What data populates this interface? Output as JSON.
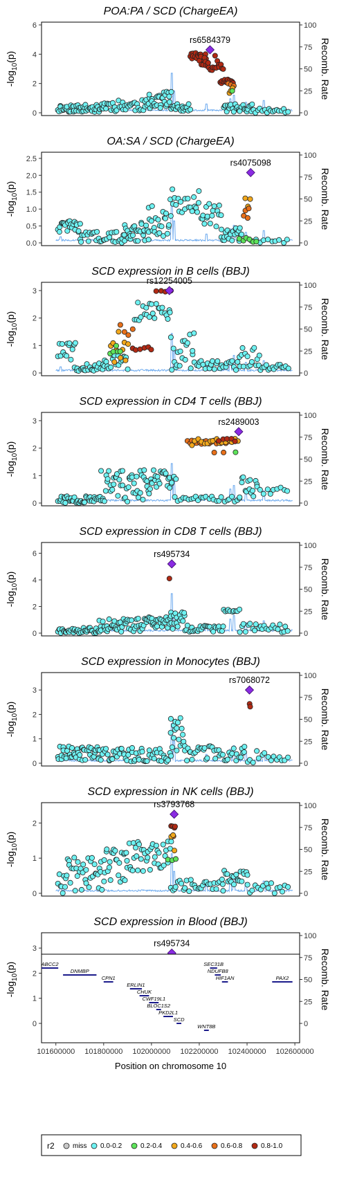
{
  "chart_data": {
    "type": "scatter",
    "xlabel": "Position on chromosome 10",
    "x_ticks": [
      101600000,
      101800000,
      102000000,
      102200000,
      102400000,
      102600000
    ],
    "x_tick_labels": [
      "101600000",
      "101800000",
      "102000000",
      "102200000",
      "102400000",
      "102600000"
    ],
    "ylabel_left": "-log10(p)",
    "ylabel_right": "Recomb. Rate",
    "recomb_ticks": [
      0,
      25,
      50,
      75,
      100
    ],
    "legend": {
      "title": "r2",
      "entries": [
        {
          "label": "miss",
          "color": "#c8c8c8"
        },
        {
          "label": "0.0-0.2",
          "color": "#6ef2f2"
        },
        {
          "label": "0.2-0.4",
          "color": "#5de35a"
        },
        {
          "label": "0.4-0.6",
          "color": "#f2a81c"
        },
        {
          "label": "0.6-0.8",
          "color": "#e8701a"
        },
        {
          "label": "0.8-1.0",
          "color": "#b22a14"
        }
      ]
    },
    "panels": [
      {
        "title": "POA:PA / SCD (ChargeEA)",
        "ylim": [
          0,
          6
        ],
        "yticks": [
          0,
          2,
          4,
          6
        ],
        "lead_snp": "rs6584379",
        "lead_pos": 102245000,
        "lead_y": 4.3,
        "seed": 11,
        "clusters": [
          {
            "r2": "0.0-0.2",
            "segs": [
              [
                101610000,
                101790000,
                0.05,
                0.55,
                48
              ],
              [
                101790000,
                101990000,
                0.1,
                0.9,
                40
              ],
              [
                101990000,
                102080000,
                0.3,
                1.5,
                28
              ],
              [
                102080000,
                102160000,
                0.1,
                0.6,
                20
              ],
              [
                102300000,
                102420000,
                0.05,
                0.6,
                26
              ],
              [
                102420000,
                102570000,
                0.0,
                0.3,
                18
              ]
            ]
          },
          {
            "r2": "0.8-1.0",
            "segs": [
              [
                102160000,
                102230000,
                3.55,
                4.1,
                18
              ],
              [
                102200000,
                102300000,
                2.9,
                3.9,
                22
              ],
              [
                102290000,
                102340000,
                2.0,
                2.3,
                14
              ]
            ]
          },
          {
            "r2": "0.6-0.8",
            "segs": [
              [
                102320000,
                102345000,
                1.5,
                2.2,
                3
              ]
            ]
          },
          {
            "r2": "0.4-0.6",
            "segs": [
              [
                102325000,
                102340000,
                1.2,
                1.7,
                3
              ]
            ]
          },
          {
            "r2": "0.2-0.4",
            "segs": [
              [
                102330000,
                102345000,
                1.4,
                1.6,
                1
              ]
            ]
          }
        ]
      },
      {
        "title": "OA:SA / SCD (ChargeEA)",
        "ylim": [
          0,
          2.6
        ],
        "yticks": [
          0,
          0.5,
          1.0,
          1.5,
          2.0,
          2.5
        ],
        "ytick_labels": [
          "0.0",
          "0.5",
          "1.0",
          "1.5",
          "2.0",
          "2.5"
        ],
        "lead_snp": "rs4075098",
        "lead_pos": 102415000,
        "lead_y": 2.08,
        "seed": 22,
        "clusters": [
          {
            "r2": "0.0-0.2",
            "segs": [
              [
                101610000,
                101700000,
                0.3,
                0.65,
                24
              ],
              [
                101700000,
                101880000,
                0.0,
                0.35,
                30
              ],
              [
                101880000,
                101990000,
                0.05,
                0.6,
                30
              ],
              [
                101990000,
                102080000,
                0.2,
                1.1,
                22
              ],
              [
                102080000,
                102200000,
                0.9,
                1.6,
                20
              ],
              [
                102200000,
                102290000,
                0.45,
                1.2,
                18
              ],
              [
                102290000,
                102380000,
                0.05,
                0.45,
                22
              ],
              [
                102420000,
                102570000,
                0.0,
                0.1,
                10
              ]
            ]
          },
          {
            "r2": "0.4-0.6",
            "segs": [
              [
                102395000,
                102415000,
                1.0,
                1.4,
                3
              ]
            ]
          },
          {
            "r2": "0.6-0.8",
            "segs": [
              [
                102385000,
                102410000,
                0.65,
                1.05,
                4
              ]
            ]
          },
          {
            "r2": "0.2-0.4",
            "segs": [
              [
                102370000,
                102440000,
                0.02,
                0.15,
                6
              ]
            ]
          }
        ]
      },
      {
        "title": "SCD expression in B cells (BBJ)",
        "ylim": [
          0,
          3.2
        ],
        "yticks": [
          0,
          1,
          2,
          3
        ],
        "lead_snp": "rs12254005",
        "lead_pos": 102075000,
        "lead_y": 3.0,
        "seed": 33,
        "clusters": [
          {
            "r2": "0.0-0.2",
            "segs": [
              [
                101610000,
                101680000,
                0.4,
                1.15,
                14
              ],
              [
                101680000,
                101800000,
                0.05,
                0.35,
                22
              ],
              [
                101800000,
                101900000,
                0.1,
                0.7,
                18
              ],
              [
                101930000,
                102080000,
                1.9,
                2.6,
                24
              ],
              [
                102080000,
                102180000,
                0.1,
                1.5,
                20
              ],
              [
                102180000,
                102370000,
                0.1,
                0.45,
                26
              ],
              [
                102370000,
                102450000,
                0.2,
                1.0,
                14
              ],
              [
                102450000,
                102570000,
                0.1,
                0.3,
                16
              ]
            ]
          },
          {
            "r2": "0.8-1.0",
            "segs": [
              [
                102020000,
                102080000,
                2.95,
                3.0,
                4
              ],
              [
                101920000,
                102000000,
                0.8,
                1.0,
                6
              ]
            ]
          },
          {
            "r2": "0.6-0.8",
            "segs": [
              [
                101870000,
                101920000,
                1.3,
                1.8,
                4
              ]
            ]
          },
          {
            "r2": "0.4-0.6",
            "segs": [
              [
                101830000,
                101900000,
                0.2,
                1.9,
                10
              ]
            ]
          },
          {
            "r2": "0.2-0.4",
            "segs": [
              [
                101830000,
                101870000,
                0.5,
                1.0,
                5
              ]
            ]
          }
        ]
      },
      {
        "title": "SCD expression in CD4 T cells (BBJ)",
        "ylim": [
          0,
          3.2
        ],
        "yticks": [
          0,
          1,
          2,
          3
        ],
        "lead_snp": "rs2489003",
        "lead_pos": 102365000,
        "lead_y": 2.6,
        "seed": 44,
        "clusters": [
          {
            "r2": "0.0-0.2",
            "segs": [
              [
                101610000,
                101790000,
                0.0,
                0.25,
                40
              ],
              [
                101790000,
                102000000,
                0.05,
                1.2,
                52
              ],
              [
                102000000,
                102100000,
                0.5,
                1.2,
                24
              ],
              [
                102100000,
                102370000,
                0.05,
                0.25,
                26
              ],
              [
                102370000,
                102440000,
                0.2,
                1.1,
                14
              ],
              [
                102440000,
                102570000,
                0.3,
                0.8,
                10
              ]
            ]
          },
          {
            "r2": "0.6-0.8",
            "segs": [
              [
                102150000,
                102320000,
                2.15,
                2.3,
                18
              ],
              [
                102260000,
                102300000,
                1.75,
                1.85,
                2
              ]
            ]
          },
          {
            "r2": "0.4-0.6",
            "segs": [
              [
                102170000,
                102360000,
                2.1,
                2.35,
                16
              ]
            ]
          },
          {
            "r2": "0.8-1.0",
            "segs": [
              [
                102280000,
                102350000,
                2.2,
                2.35,
                5
              ]
            ]
          },
          {
            "r2": "0.2-0.4",
            "segs": [
              [
                102345000,
                102365000,
                1.85,
                1.85,
                1
              ]
            ]
          }
        ]
      },
      {
        "title": "SCD expression in CD8 T cells (BBJ)",
        "ylim": [
          0,
          6.6
        ],
        "yticks": [
          0,
          2,
          4,
          6
        ],
        "lead_snp": "rs495734",
        "lead_pos": 102085000,
        "lead_y": 5.2,
        "seed": 55,
        "clusters": [
          {
            "r2": "0.0-0.2",
            "segs": [
              [
                101610000,
                101780000,
                0.0,
                0.4,
                40
              ],
              [
                101780000,
                101980000,
                0.1,
                1.1,
                50
              ],
              [
                101980000,
                102080000,
                0.4,
                1.2,
                30
              ],
              [
                102080000,
                102140000,
                0.2,
                1.6,
                16
              ],
              [
                102140000,
                102300000,
                0.1,
                0.6,
                28
              ],
              [
                102300000,
                102370000,
                1.6,
                1.8,
                10
              ],
              [
                102370000,
                102570000,
                0.0,
                0.8,
                24
              ]
            ]
          },
          {
            "r2": "0.8-1.0",
            "segs": [
              [
                102075000,
                102080000,
                4.1,
                4.1,
                1
              ]
            ]
          }
        ]
      },
      {
        "title": "SCD expression in Monocytes (BBJ)",
        "ylim": [
          0,
          3.6
        ],
        "yticks": [
          0,
          1,
          2,
          3
        ],
        "lead_snp": "rs7068072",
        "lead_pos": 102410000,
        "lead_y": 3.0,
        "seed": 66,
        "clusters": [
          {
            "r2": "0.0-0.2",
            "segs": [
              [
                101610000,
                101780000,
                0.1,
                0.7,
                44
              ],
              [
                101780000,
                102080000,
                0.05,
                0.65,
                60
              ],
              [
                102080000,
                102140000,
                0.5,
                1.95,
                18
              ],
              [
                102140000,
                102390000,
                0.1,
                0.7,
                40
              ],
              [
                102390000,
                102570000,
                0.0,
                0.55,
                16
              ]
            ]
          },
          {
            "r2": "0.8-1.0",
            "segs": [
              [
                102410000,
                102415000,
                2.3,
                2.6,
                2
              ]
            ]
          }
        ]
      },
      {
        "title": "SCD expression in NK cells (BBJ)",
        "ylim": [
          0,
          2.5
        ],
        "yticks": [
          0,
          1,
          2
        ],
        "lead_snp": "rs3793768",
        "lead_pos": 102095000,
        "lead_y": 2.25,
        "seed": 77,
        "clusters": [
          {
            "r2": "0.0-0.2",
            "segs": [
              [
                101610000,
                101800000,
                0.0,
                1.05,
                44
              ],
              [
                101800000,
                101900000,
                0.3,
                1.3,
                24
              ],
              [
                101900000,
                102080000,
                0.6,
                1.5,
                40
              ],
              [
                102080000,
                102300000,
                0.05,
                0.4,
                30
              ],
              [
                102300000,
                102400000,
                0.25,
                0.65,
                20
              ],
              [
                102400000,
                102570000,
                0.0,
                0.3,
                16
              ]
            ]
          },
          {
            "r2": "0.8-1.0",
            "segs": [
              [
                102085000,
                102100000,
                1.75,
                1.95,
                4
              ]
            ]
          },
          {
            "r2": "0.6-0.8",
            "segs": [
              [
                102085000,
                102095000,
                1.6,
                1.7,
                2
              ]
            ]
          },
          {
            "r2": "0.4-0.6",
            "segs": [
              [
                102080000,
                102095000,
                1.15,
                1.7,
                3
              ]
            ]
          },
          {
            "r2": "0.2-0.4",
            "segs": [
              [
                102070000,
                102100000,
                0.9,
                1.15,
                3
              ]
            ]
          }
        ]
      },
      {
        "title": "SCD expression in Blood (BBJ)",
        "ylim": [
          0,
          3.5
        ],
        "yticks": [
          0,
          1,
          2,
          3
        ],
        "lead_snp": "rs495734",
        "lead_pos": 102085000,
        "lead_y": 2.8,
        "seed": 88,
        "clusters": [
          {
            "r2": "0.0-0.2",
            "segs": [
              [
                101610000,
                101800000,
                0.0,
                0.95,
                44
              ],
              [
                101800000,
                101920000,
                0.2,
                2.2,
                30
              ],
              [
                101920000,
                102080000,
                0.5,
                2.0,
                36
              ],
              [
                102080000,
                102130000,
                0.2,
                1.3,
                12
              ],
              [
                102130000,
                102330000,
                0.05,
                0.35,
                28
              ],
              [
                102330000,
                102400000,
                0.4,
                1.2,
                16
              ],
              [
                102400000,
                102570000,
                0.0,
                0.5,
                14
              ]
            ]
          },
          {
            "r2": "0.8-1.0",
            "segs": [
              [
                102075000,
                102080000,
                2.65,
                2.65,
                1
              ]
            ]
          }
        ]
      }
    ],
    "genes": [
      {
        "name": "ABCC2",
        "start": 101540000,
        "end": 101610000,
        "row": 0
      },
      {
        "name": "DNMBP",
        "start": 101630000,
        "end": 101770000,
        "row": 1
      },
      {
        "name": "CPN1",
        "start": 101800000,
        "end": 101840000,
        "row": 2
      },
      {
        "name": "ERLIN1",
        "start": 101910000,
        "end": 101960000,
        "row": 3
      },
      {
        "name": "CHUK",
        "start": 101950000,
        "end": 101990000,
        "row": 4
      },
      {
        "name": "CWF19L1",
        "start": 101990000,
        "end": 102030000,
        "row": 5
      },
      {
        "name": "BLOC1S2",
        "start": 102020000,
        "end": 102040000,
        "row": 6
      },
      {
        "name": "PKD2L1",
        "start": 102050000,
        "end": 102090000,
        "row": 7
      },
      {
        "name": "SCD",
        "start": 102105000,
        "end": 102125000,
        "row": 8
      },
      {
        "name": "WNT8B",
        "start": 102220000,
        "end": 102240000,
        "row": 9
      },
      {
        "name": "SEC31B",
        "start": 102245000,
        "end": 102275000,
        "row": 0
      },
      {
        "name": "NDUFB8",
        "start": 102265000,
        "end": 102290000,
        "row": 1
      },
      {
        "name": "HIF1AN",
        "start": 102295000,
        "end": 102320000,
        "row": 2
      },
      {
        "name": "PAX2",
        "start": 102505000,
        "end": 102590000,
        "row": 2
      }
    ]
  }
}
